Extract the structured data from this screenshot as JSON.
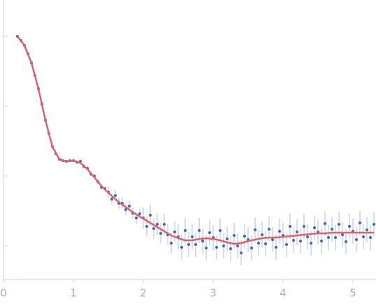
{
  "chart_data": {
    "type": "scatter",
    "xlim": [
      0,
      5.33
    ],
    "ylim": [
      -0.48,
      3.52
    ],
    "xticks": [
      0,
      1,
      2,
      3,
      4,
      5
    ],
    "yticks": [
      0,
      1,
      2,
      3
    ],
    "series": [
      {
        "kind": "points",
        "color": "#3a68c0",
        "error_color": "#a9c0e6",
        "x": [
          0.2,
          0.25,
          0.3,
          0.35,
          0.4,
          0.45,
          0.5,
          0.55,
          0.6,
          0.65,
          0.7,
          0.75,
          0.8,
          0.85,
          0.9,
          0.95,
          1.0,
          1.05,
          1.1,
          1.15,
          1.2,
          1.25,
          1.3,
          1.35,
          1.4,
          1.45,
          1.5,
          1.55,
          1.6,
          1.65,
          1.7,
          1.75,
          1.8,
          1.85,
          1.9,
          1.95,
          2.0,
          2.05,
          2.1,
          2.15,
          2.2,
          2.25,
          2.3,
          2.35,
          2.4,
          2.45,
          2.5,
          2.55,
          2.6,
          2.65,
          2.7,
          2.75,
          2.8,
          2.85,
          2.9,
          2.95,
          3.0,
          3.05,
          3.1,
          3.15,
          3.2,
          3.25,
          3.3,
          3.35,
          3.4,
          3.45,
          3.5,
          3.55,
          3.6,
          3.65,
          3.7,
          3.75,
          3.8,
          3.85,
          3.9,
          3.95,
          4.0,
          4.05,
          4.1,
          4.15,
          4.2,
          4.25,
          4.3,
          4.35,
          4.4,
          4.45,
          4.5,
          4.55,
          4.6,
          4.65,
          4.7,
          4.75,
          4.8,
          4.85,
          4.9,
          4.95,
          5.0,
          5.05,
          5.1,
          5.15,
          5.2,
          5.25,
          5.3
        ],
        "values": [
          3.0,
          2.94,
          2.87,
          2.75,
          2.62,
          2.44,
          2.25,
          2.03,
          1.8,
          1.61,
          1.42,
          1.32,
          1.24,
          1.22,
          1.21,
          1.22,
          1.22,
          1.2,
          1.21,
          1.14,
          1.11,
          1.03,
          1.0,
          0.92,
          0.84,
          0.82,
          0.77,
          0.67,
          0.72,
          0.61,
          0.61,
          0.52,
          0.57,
          0.47,
          0.4,
          0.46,
          0.4,
          0.28,
          0.44,
          0.25,
          0.31,
          0.18,
          0.31,
          0.16,
          0.04,
          0.2,
          0.13,
          -0.02,
          0.22,
          0.02,
          0.13,
          0.02,
          0.22,
          0.07,
          -0.03,
          0.19,
          0.12,
          -0.02,
          0.22,
          0.0,
          0.1,
          -0.04,
          0.15,
          0.0,
          -0.1,
          0.14,
          0.09,
          -0.03,
          0.23,
          0.04,
          0.16,
          0.03,
          0.24,
          0.09,
          -0.02,
          0.21,
          0.15,
          0.02,
          0.28,
          0.08,
          0.2,
          0.07,
          0.28,
          0.13,
          0.04,
          0.26,
          0.2,
          0.07,
          0.32,
          0.12,
          0.24,
          0.12,
          0.31,
          0.16,
          0.06,
          0.28,
          0.21,
          0.09,
          0.33,
          0.13,
          0.23,
          0.12,
          0.31
        ],
        "errors": [
          0.01,
          0.01,
          0.01,
          0.01,
          0.01,
          0.01,
          0.01,
          0.01,
          0.01,
          0.01,
          0.01,
          0.01,
          0.01,
          0.01,
          0.01,
          0.01,
          0.03,
          0.03,
          0.03,
          0.03,
          0.03,
          0.03,
          0.03,
          0.03,
          0.03,
          0.03,
          0.08,
          0.08,
          0.08,
          0.08,
          0.08,
          0.08,
          0.08,
          0.08,
          0.08,
          0.08,
          0.15,
          0.15,
          0.15,
          0.15,
          0.15,
          0.15,
          0.15,
          0.15,
          0.15,
          0.15,
          0.18,
          0.18,
          0.18,
          0.18,
          0.18,
          0.18,
          0.18,
          0.18,
          0.18,
          0.18,
          0.18,
          0.18,
          0.18,
          0.18,
          0.18,
          0.18,
          0.18,
          0.18,
          0.18,
          0.18,
          0.18,
          0.18,
          0.18,
          0.18,
          0.18,
          0.18,
          0.18,
          0.18,
          0.18,
          0.18,
          0.18,
          0.18,
          0.18,
          0.18,
          0.18,
          0.18,
          0.18,
          0.18,
          0.18,
          0.18,
          0.18,
          0.18,
          0.18,
          0.18,
          0.18,
          0.18,
          0.18,
          0.18,
          0.18,
          0.18,
          0.18,
          0.18,
          0.18,
          0.18,
          0.18,
          0.18,
          0.18
        ]
      },
      {
        "kind": "line",
        "color": "#e0606c",
        "x": [
          0.2,
          0.3,
          0.4,
          0.5,
          0.6,
          0.7,
          0.8,
          0.9,
          1.0,
          1.1,
          1.2,
          1.3,
          1.4,
          1.5,
          1.6,
          1.7,
          1.8,
          1.9,
          2.0,
          2.1,
          2.2,
          2.3,
          2.4,
          2.5,
          2.6,
          2.7,
          2.8,
          2.9,
          3.0,
          3.1,
          3.2,
          3.3,
          3.4,
          3.5,
          3.6,
          3.7,
          3.8,
          3.9,
          4.0,
          4.1,
          4.2,
          4.3,
          4.4,
          4.5,
          4.6,
          4.7,
          4.8,
          4.9,
          5.0,
          5.1,
          5.2,
          5.3
        ],
        "values": [
          3.0,
          2.87,
          2.62,
          2.25,
          1.8,
          1.42,
          1.24,
          1.21,
          1.22,
          1.19,
          1.1,
          0.98,
          0.86,
          0.76,
          0.67,
          0.59,
          0.52,
          0.45,
          0.39,
          0.33,
          0.27,
          0.21,
          0.15,
          0.11,
          0.08,
          0.08,
          0.1,
          0.11,
          0.1,
          0.08,
          0.05,
          0.03,
          0.04,
          0.07,
          0.09,
          0.11,
          0.12,
          0.12,
          0.13,
          0.14,
          0.15,
          0.16,
          0.17,
          0.18,
          0.18,
          0.19,
          0.19,
          0.19,
          0.19,
          0.19,
          0.19,
          0.19
        ]
      }
    ]
  }
}
